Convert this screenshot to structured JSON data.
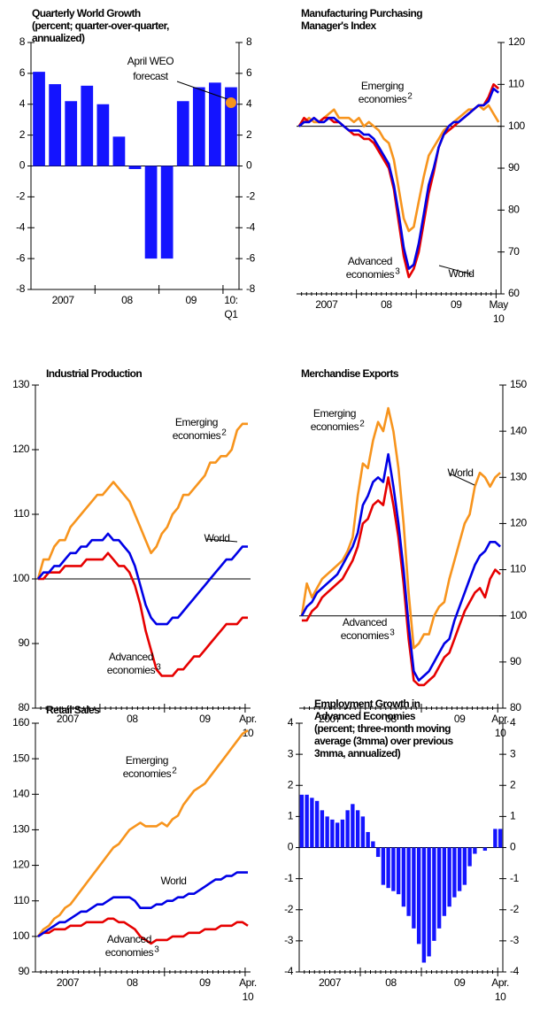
{
  "chart_data": [
    {
      "type": "bar",
      "title": [
        "Quarterly World Growth",
        "(percent; quarter-over-quarter,",
        "annualized)"
      ],
      "categories": [
        "2007",
        null,
        null,
        null,
        "08",
        null,
        null,
        null,
        "09",
        null,
        null,
        null,
        "10:\nQ1"
      ],
      "values": [
        6.1,
        5.3,
        4.2,
        5.2,
        4.0,
        1.9,
        -0.2,
        -6.0,
        -6.0,
        4.2,
        5.1,
        5.4,
        5.1
      ],
      "color": "#1414ff",
      "ylim": [
        -8,
        8
      ],
      "yticks": [
        -8,
        -6,
        -4,
        -2,
        0,
        2,
        4,
        6,
        8
      ],
      "yaxis_side": "both",
      "forecast": {
        "label": [
          "April WEO",
          "forecast"
        ],
        "value": 4.1,
        "color": "#f7941d"
      }
    },
    {
      "type": "line",
      "title": [
        "Manufacturing Purchasing",
        "Manager's Index"
      ],
      "categories": [
        "2007",
        null,
        null,
        null,
        null,
        null,
        null,
        null,
        null,
        null,
        null,
        null,
        "08",
        null,
        null,
        null,
        null,
        null,
        null,
        null,
        null,
        null,
        null,
        null,
        "09",
        null,
        null,
        null,
        null,
        null,
        null,
        null,
        null,
        null,
        null,
        null,
        null,
        null,
        null,
        null,
        "May\n10"
      ],
      "series": [
        {
          "name": [
            "Emerging",
            "economies"
          ],
          "sup": "2",
          "color": "#f7941d",
          "values": [
            100,
            101,
            102,
            101,
            101,
            102,
            103,
            104,
            102,
            102,
            102,
            101,
            102,
            100,
            101,
            100,
            99,
            97,
            96,
            92,
            85,
            78,
            75,
            76,
            82,
            88,
            93,
            95,
            97,
            99,
            100,
            101,
            102,
            103,
            104,
            104,
            105,
            104,
            105,
            103,
            101
          ]
        },
        {
          "name": [
            "World"
          ],
          "color": "#0000e6",
          "values": [
            100,
            101,
            101,
            102,
            101,
            101,
            102,
            102,
            101,
            100,
            99,
            99,
            99,
            98,
            98,
            97,
            95,
            93,
            91,
            86,
            79,
            71,
            66,
            67,
            72,
            79,
            86,
            90,
            95,
            98,
            100,
            101,
            101,
            102,
            103,
            104,
            105,
            105,
            106,
            109,
            108
          ]
        },
        {
          "name": [
            "Advanced",
            "economies"
          ],
          "sup": "3",
          "color": "#e60000",
          "values": [
            100,
            102,
            101,
            102,
            101,
            102,
            102,
            101,
            101,
            100,
            99,
            98,
            98,
            97,
            97,
            96,
            94,
            92,
            90,
            85,
            77,
            69,
            64,
            66,
            70,
            77,
            84,
            89,
            95,
            98,
            99,
            100,
            101,
            102,
            103,
            104,
            105,
            105,
            107,
            110,
            109
          ]
        }
      ],
      "ylim": [
        60,
        120
      ],
      "yticks": [
        60,
        70,
        80,
        90,
        100,
        110,
        120
      ],
      "yaxis_side": "right",
      "reference_line": 100
    },
    {
      "type": "line",
      "title": [
        "Industrial Production"
      ],
      "categories": [
        "2007",
        null,
        null,
        null,
        null,
        null,
        null,
        null,
        null,
        null,
        null,
        null,
        "08",
        null,
        null,
        null,
        null,
        null,
        null,
        null,
        null,
        null,
        null,
        null,
        "09",
        null,
        null,
        null,
        null,
        null,
        null,
        null,
        null,
        null,
        null,
        null,
        null,
        null,
        null,
        "Apr.\n10"
      ],
      "series": [
        {
          "name": [
            "Emerging",
            "economies"
          ],
          "sup": "2",
          "color": "#f7941d",
          "values": [
            100,
            103,
            103,
            105,
            106,
            106,
            108,
            109,
            110,
            111,
            112,
            113,
            113,
            114,
            115,
            114,
            113,
            112,
            110,
            108,
            106,
            104,
            105,
            107,
            108,
            110,
            111,
            113,
            113,
            114,
            115,
            116,
            118,
            118,
            119,
            119,
            120,
            123,
            124,
            124
          ]
        },
        {
          "name": [
            "World"
          ],
          "color": "#0000e6",
          "values": [
            100,
            101,
            101,
            102,
            102,
            103,
            104,
            104,
            105,
            105,
            106,
            106,
            106,
            107,
            106,
            106,
            105,
            104,
            102,
            99,
            96,
            94,
            93,
            93,
            93,
            94,
            94,
            95,
            96,
            97,
            98,
            99,
            100,
            101,
            102,
            103,
            103,
            104,
            105,
            105
          ]
        },
        {
          "name": [
            "Advanced",
            "economies"
          ],
          "sup": "3",
          "color": "#e60000",
          "values": [
            100,
            100,
            101,
            101,
            101,
            102,
            102,
            102,
            102,
            103,
            103,
            103,
            103,
            104,
            103,
            102,
            102,
            101,
            99,
            96,
            92,
            89,
            86,
            85,
            85,
            85,
            86,
            86,
            87,
            88,
            88,
            89,
            90,
            91,
            92,
            93,
            93,
            93,
            94,
            94
          ]
        }
      ],
      "ylim": [
        80,
        130
      ],
      "yticks": [
        80,
        90,
        100,
        110,
        120,
        130
      ],
      "yaxis_side": "left",
      "reference_line": 100
    },
    {
      "type": "line",
      "title": [
        "Merchandise Exports"
      ],
      "categories": [
        "2007",
        null,
        null,
        null,
        null,
        null,
        null,
        null,
        null,
        null,
        null,
        null,
        "08",
        null,
        null,
        null,
        null,
        null,
        null,
        null,
        null,
        null,
        null,
        null,
        "09",
        null,
        null,
        null,
        null,
        null,
        null,
        null,
        null,
        null,
        null,
        null,
        null,
        null,
        null,
        "Apr.\n10"
      ],
      "series": [
        {
          "name": [
            "Emerging",
            "economies"
          ],
          "sup": "2",
          "color": "#f7941d",
          "values": [
            100,
            107,
            104,
            106,
            108,
            109,
            110,
            111,
            112,
            114,
            117,
            126,
            133,
            132,
            138,
            142,
            140,
            145,
            140,
            132,
            120,
            105,
            93,
            94,
            96,
            96,
            100,
            102,
            103,
            108,
            112,
            116,
            120,
            122,
            128,
            131,
            130,
            128,
            130,
            131
          ]
        },
        {
          "name": [
            "World"
          ],
          "color": "#0000e6",
          "values": [
            100,
            102,
            103,
            105,
            106,
            107,
            108,
            109,
            111,
            113,
            115,
            118,
            124,
            126,
            129,
            130,
            129,
            135,
            128,
            120,
            110,
            98,
            88,
            86,
            87,
            88,
            90,
            92,
            94,
            95,
            99,
            102,
            105,
            108,
            111,
            113,
            114,
            116,
            116,
            115
          ]
        },
        {
          "name": [
            "Advanced",
            "economies"
          ],
          "sup": "3",
          "color": "#e60000",
          "values": [
            99,
            99,
            101,
            102,
            104,
            105,
            106,
            107,
            108,
            110,
            112,
            115,
            120,
            121,
            124,
            125,
            124,
            130,
            124,
            117,
            107,
            95,
            86,
            85,
            85,
            86,
            87,
            89,
            91,
            92,
            95,
            98,
            101,
            103,
            105,
            106,
            104,
            108,
            110,
            109
          ]
        }
      ],
      "ylim": [
        80,
        150
      ],
      "yticks": [
        80,
        90,
        100,
        110,
        120,
        130,
        140,
        150
      ],
      "yaxis_side": "right",
      "reference_line": 100
    },
    {
      "type": "line",
      "title": [
        "Retail Sales"
      ],
      "categories": [
        "2007",
        null,
        null,
        null,
        null,
        null,
        null,
        null,
        null,
        null,
        null,
        null,
        "08",
        null,
        null,
        null,
        null,
        null,
        null,
        null,
        null,
        null,
        null,
        null,
        "09",
        null,
        null,
        null,
        null,
        null,
        null,
        null,
        null,
        null,
        null,
        null,
        null,
        null,
        null,
        "Apr.\n10"
      ],
      "series": [
        {
          "name": [
            "Emerging",
            "economies"
          ],
          "sup": "2",
          "color": "#f7941d",
          "values": [
            100,
            102,
            103,
            105,
            106,
            108,
            109,
            111,
            113,
            115,
            117,
            119,
            121,
            123,
            125,
            126,
            128,
            130,
            131,
            132,
            131,
            131,
            131,
            132,
            131,
            133,
            134,
            137,
            139,
            141,
            142,
            143,
            145,
            147,
            149,
            151,
            153,
            155,
            157,
            158
          ]
        },
        {
          "name": [
            "World"
          ],
          "color": "#0000e6",
          "values": [
            100,
            101,
            102,
            103,
            104,
            104,
            105,
            106,
            107,
            107,
            108,
            109,
            109,
            110,
            111,
            111,
            111,
            111,
            110,
            108,
            108,
            108,
            109,
            109,
            110,
            110,
            111,
            111,
            112,
            112,
            113,
            114,
            115,
            116,
            116,
            117,
            117,
            118,
            118,
            118
          ]
        },
        {
          "name": [
            "Advanced",
            "economies"
          ],
          "sup": "3",
          "color": "#e60000",
          "values": [
            100,
            101,
            101,
            102,
            102,
            102,
            103,
            103,
            103,
            104,
            104,
            104,
            104,
            105,
            105,
            104,
            104,
            103,
            102,
            100,
            99,
            98,
            99,
            99,
            99,
            100,
            100,
            100,
            101,
            101,
            101,
            102,
            102,
            102,
            103,
            103,
            103,
            104,
            104,
            103
          ]
        }
      ],
      "ylim": [
        90,
        160
      ],
      "yticks": [
        90,
        100,
        110,
        120,
        130,
        140,
        150,
        160
      ],
      "yaxis_side": "left"
    },
    {
      "type": "bar",
      "title": [
        "Employment Growth in",
        "Advanced Economies",
        "(percent; three-month moving",
        "average (3mma) over previous",
        "3mma, annualized)"
      ],
      "categories": [
        "2007",
        null,
        null,
        null,
        null,
        null,
        null,
        null,
        null,
        null,
        null,
        null,
        "08",
        null,
        null,
        null,
        null,
        null,
        null,
        null,
        null,
        null,
        null,
        null,
        "09",
        null,
        null,
        null,
        null,
        null,
        null,
        null,
        null,
        null,
        null,
        null,
        null,
        null,
        null,
        "Apr.\n10"
      ],
      "values": [
        1.7,
        1.7,
        1.6,
        1.5,
        1.2,
        1.0,
        0.9,
        0.8,
        0.9,
        1.2,
        1.4,
        1.2,
        1.0,
        0.5,
        0.2,
        -0.3,
        -1.2,
        -1.3,
        -1.4,
        -1.5,
        -1.9,
        -2.2,
        -2.6,
        -3.1,
        -3.7,
        -3.5,
        -3.0,
        -2.6,
        -2.2,
        -1.9,
        -1.6,
        -1.4,
        -1.2,
        -0.6,
        -0.2,
        0.0,
        -0.1,
        0.0,
        0.6,
        0.6
      ],
      "color": "#1414ff",
      "ylim": [
        -4,
        4
      ],
      "yticks": [
        -4,
        -3,
        -2,
        -1,
        0,
        1,
        2,
        3,
        4
      ],
      "yaxis_side": "both"
    }
  ]
}
